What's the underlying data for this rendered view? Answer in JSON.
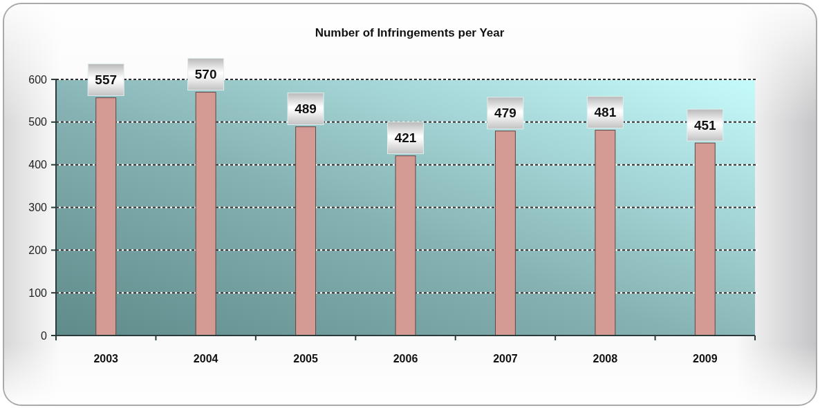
{
  "chart_data": {
    "type": "bar",
    "title": "Number of Infringements per Year",
    "categories": [
      "2003",
      "2004",
      "2005",
      "2006",
      "2007",
      "2008",
      "2009"
    ],
    "values": [
      557,
      570,
      489,
      421,
      479,
      481,
      451
    ],
    "color": "#d49a94",
    "ylim": [
      0,
      600
    ],
    "yticks": [
      0,
      100,
      200,
      300,
      400,
      500,
      600
    ],
    "grid": "y",
    "data_labels": true
  }
}
